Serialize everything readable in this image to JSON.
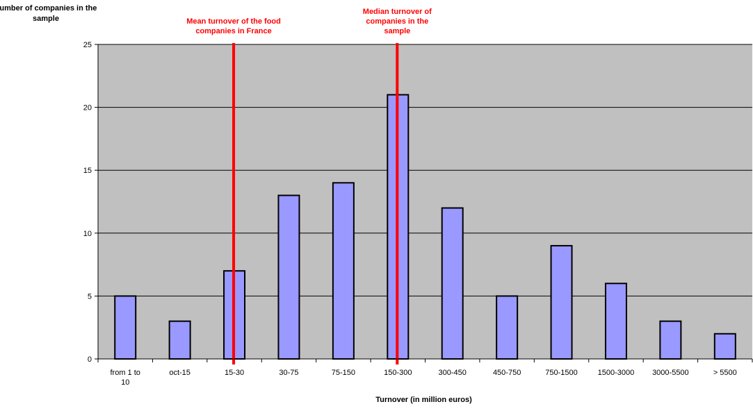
{
  "chart_data": {
    "type": "bar",
    "ylabel": "number of companies in the sample",
    "xlabel": "Turnover (in million euros)",
    "categories": [
      "from 1 to 10",
      "oct-15",
      "15-30",
      "30-75",
      "75-150",
      "150-300",
      "300-450",
      "450-750",
      "750-1500",
      "1500-3000",
      "3000-5500",
      "> 5500"
    ],
    "series": [
      {
        "values": [
          5,
          3,
          7,
          13,
          14,
          21,
          12,
          5,
          9,
          6,
          3,
          2
        ]
      }
    ],
    "ylim": [
      0,
      25
    ],
    "yticks": [
      0,
      5,
      10,
      15,
      20,
      25
    ],
    "grid": true,
    "colors": {
      "plot_background": "#c0c0c0",
      "bar_fill": "#9999ff",
      "bar_stroke": "#000000",
      "reference_line": "#ff0000",
      "reference_text": "#ff0000"
    },
    "reference_lines": [
      {
        "label": "Mean turnover of the food companies in France",
        "position_category_index": 2.5
      },
      {
        "label": "Median turnover of companies in the sample",
        "position_category_index": 5.5
      }
    ]
  }
}
